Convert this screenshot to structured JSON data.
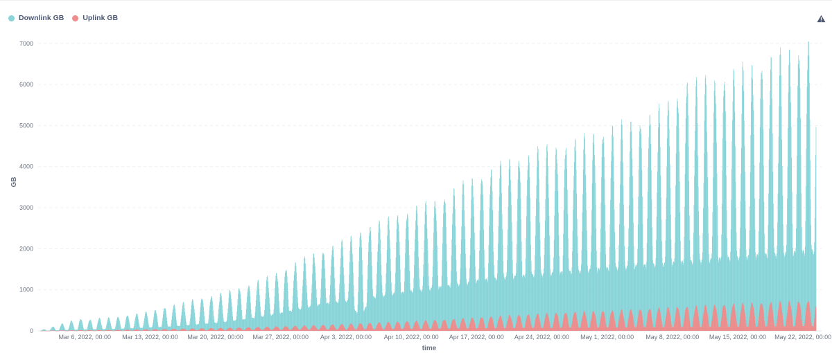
{
  "legend": {
    "downlink": {
      "label": "Downlink GB",
      "color": "#88d4d8"
    },
    "uplink": {
      "label": "Uplink GB",
      "color": "#ef8c8c"
    }
  },
  "header": {
    "warning_icon": "warning-triangle-icon"
  },
  "chart_data": {
    "type": "bar",
    "xlabel": "time",
    "ylabel": "GB",
    "ylim": [
      0,
      7300
    ],
    "yticks": [
      0,
      1000,
      2000,
      3000,
      4000,
      5000,
      6000,
      7000
    ],
    "xlim": [
      "2022-03-01",
      "2022-05-24"
    ],
    "grid": true,
    "legend_position": "top-left",
    "xticks": [
      {
        "date": "2022-03-06",
        "label": "Mar 6, 2022, 00:00"
      },
      {
        "date": "2022-03-13",
        "label": "Mar 13, 2022, 00:00"
      },
      {
        "date": "2022-03-20",
        "label": "Mar 20, 2022, 00:00"
      },
      {
        "date": "2022-03-27",
        "label": "Mar 27, 2022, 00:00"
      },
      {
        "date": "2022-04-03",
        "label": "Apr 3, 2022, 00:00"
      },
      {
        "date": "2022-04-10",
        "label": "Apr 10, 2022, 00:00"
      },
      {
        "date": "2022-04-17",
        "label": "Apr 17, 2022, 00:00"
      },
      {
        "date": "2022-04-24",
        "label": "Apr 24, 2022, 00:00"
      },
      {
        "date": "2022-05-01",
        "label": "May 1, 2022, 00:00"
      },
      {
        "date": "2022-05-08",
        "label": "May 8, 2022, 00:00"
      },
      {
        "date": "2022-05-15",
        "label": "May 15, 2022, 00:00"
      },
      {
        "date": "2022-05-22",
        "label": "May 22, 2022, 00:00"
      }
    ],
    "series": [
      {
        "name": "Downlink GB",
        "color": "#88d4d8",
        "daily_peak_dates": [
          "2022-03-02",
          "2022-03-03",
          "2022-03-04",
          "2022-03-05",
          "2022-03-06",
          "2022-03-07",
          "2022-03-08",
          "2022-03-09",
          "2022-03-10",
          "2022-03-11",
          "2022-03-12",
          "2022-03-13",
          "2022-03-14",
          "2022-03-15",
          "2022-03-16",
          "2022-03-17",
          "2022-03-18",
          "2022-03-19",
          "2022-03-20",
          "2022-03-21",
          "2022-03-22",
          "2022-03-23",
          "2022-03-24",
          "2022-03-25",
          "2022-03-26",
          "2022-03-27",
          "2022-03-28",
          "2022-03-29",
          "2022-03-30",
          "2022-03-31",
          "2022-04-01",
          "2022-04-02",
          "2022-04-03",
          "2022-04-04",
          "2022-04-05",
          "2022-04-06",
          "2022-04-07",
          "2022-04-08",
          "2022-04-09",
          "2022-04-10",
          "2022-04-11",
          "2022-04-12",
          "2022-04-13",
          "2022-04-14",
          "2022-04-15",
          "2022-04-16",
          "2022-04-17",
          "2022-04-18",
          "2022-04-19",
          "2022-04-20",
          "2022-04-21",
          "2022-04-22",
          "2022-04-23",
          "2022-04-24",
          "2022-04-25",
          "2022-04-26",
          "2022-04-27",
          "2022-04-28",
          "2022-04-29",
          "2022-04-30",
          "2022-05-01",
          "2022-05-02",
          "2022-05-03",
          "2022-05-04",
          "2022-05-05",
          "2022-05-06",
          "2022-05-07",
          "2022-05-08",
          "2022-05-09",
          "2022-05-10",
          "2022-05-11",
          "2022-05-12",
          "2022-05-13",
          "2022-05-14",
          "2022-05-15",
          "2022-05-16",
          "2022-05-17",
          "2022-05-18",
          "2022-05-19",
          "2022-05-20",
          "2022-05-21",
          "2022-05-22",
          "2022-05-23"
        ],
        "daily_peak_values": [
          100,
          180,
          250,
          300,
          280,
          320,
          330,
          350,
          390,
          430,
          470,
          520,
          590,
          660,
          700,
          780,
          830,
          870,
          930,
          1000,
          1080,
          1150,
          1250,
          1340,
          1450,
          1570,
          1690,
          1810,
          1920,
          2020,
          2120,
          2230,
          2340,
          2530,
          2620,
          2700,
          2800,
          2920,
          2980,
          3080,
          3170,
          3250,
          3380,
          3530,
          3660,
          3790,
          3920,
          4040,
          4140,
          4240,
          4340,
          4430,
          4520,
          4570,
          4620,
          4670,
          4730,
          4830,
          4930,
          5020,
          5100,
          5150,
          5200,
          5300,
          5420,
          5540,
          5660,
          5920,
          6300,
          6220,
          6260,
          6310,
          6380,
          6460,
          6560,
          6650,
          6750,
          6820,
          6900,
          6980,
          7100,
          7300,
          7100
        ],
        "daily_trough_values": [
          10,
          20,
          25,
          30,
          35,
          40,
          45,
          50,
          60,
          70,
          80,
          90,
          100,
          115,
          130,
          150,
          170,
          190,
          210,
          240,
          270,
          300,
          340,
          380,
          420,
          470,
          520,
          570,
          620,
          670,
          700,
          730,
          760,
          260,
          820,
          860,
          900,
          940,
          970,
          1000,
          1030,
          1070,
          1100,
          1140,
          1180,
          1220,
          1260,
          1290,
          1320,
          1340,
          1360,
          1380,
          1400,
          1420,
          1440,
          1460,
          1480,
          1500,
          1520,
          1540,
          1560,
          1580,
          1600,
          1620,
          1640,
          1660,
          1680,
          1700,
          1720,
          1740,
          1760,
          1780,
          1800,
          1820,
          1840,
          1860,
          1880,
          1900,
          1920,
          1940,
          1960,
          1980,
          2000
        ]
      },
      {
        "name": "Uplink GB",
        "color": "#ef8c8c",
        "daily_peak_dates": [
          "2022-03-02",
          "2022-03-09",
          "2022-03-16",
          "2022-03-23",
          "2022-03-30",
          "2022-04-06",
          "2022-04-13",
          "2022-04-20",
          "2022-04-27",
          "2022-05-04",
          "2022-05-11",
          "2022-05-18",
          "2022-05-23"
        ],
        "daily_peak_values": [
          10,
          25,
          55,
          90,
          140,
          210,
          280,
          390,
          470,
          540,
          640,
          720,
          760
        ],
        "daily_trough_values": [
          2,
          5,
          10,
          20,
          30,
          40,
          55,
          70,
          80,
          90,
          100,
          110,
          120
        ]
      }
    ]
  }
}
